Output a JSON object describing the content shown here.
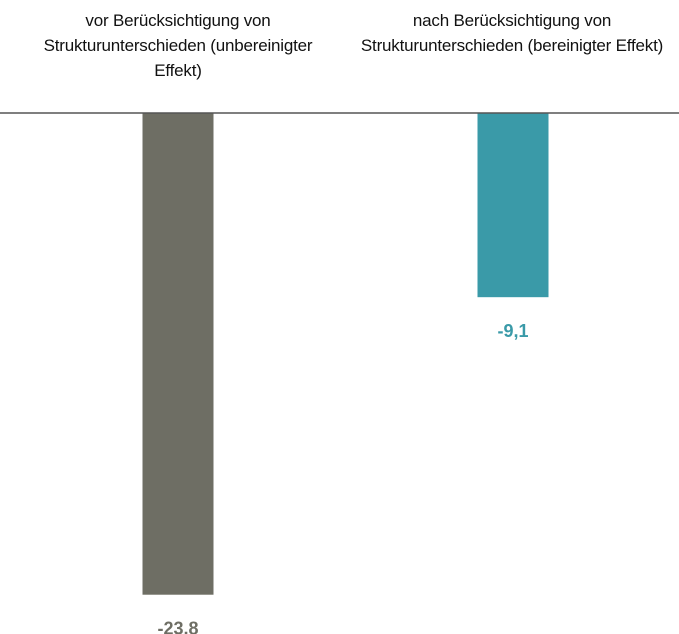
{
  "chart_data": {
    "type": "bar",
    "categories": [
      "vor Berücksichtigung von Strukturunterschieden (unbereinigter Effekt)",
      "nach Berücksichtigung von Strukturunterschieden (bereinigter Effekt)"
    ],
    "values": [
      -23.8,
      -9.1
    ],
    "value_labels": [
      "-23,8",
      "-9,1"
    ],
    "colors": [
      "#6e6e64",
      "#3a9aa8"
    ],
    "ylim": [
      -25,
      0
    ]
  }
}
